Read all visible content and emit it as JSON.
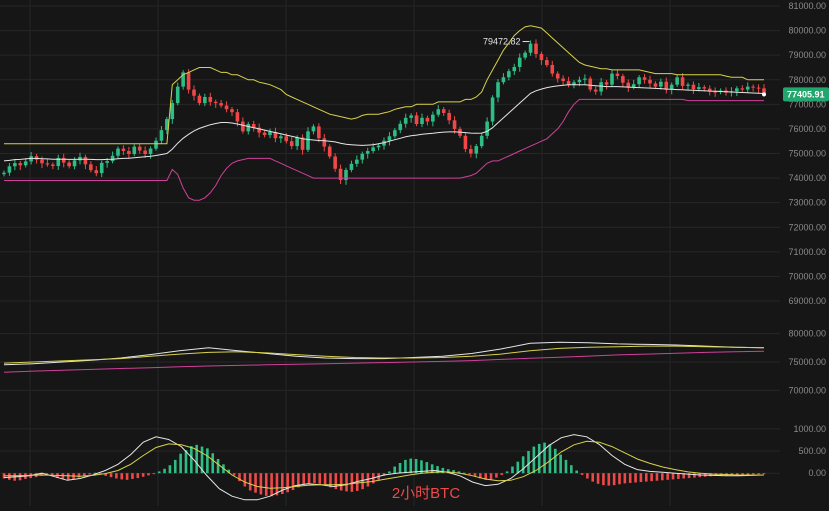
{
  "title": "",
  "caption": "2小时BTC",
  "colors": {
    "background": "#161616",
    "grid": "#262626",
    "up": "#2ebd85",
    "down": "#f04848",
    "boll_upper": "#d8d24a",
    "boll_mid": "#e6e6e6",
    "boll_lower": "#d0409a",
    "ma_a": "#e6e6e6",
    "ma_b": "#d8d24a",
    "ma_c": "#d0409a",
    "price_tag": "#22a66e"
  },
  "chart_data": [
    {
      "type": "candlestick",
      "panel": "price",
      "y_ticks": [
        "81000.00",
        "80000.00",
        "79000.00",
        "78000.00",
        "77000.00",
        "76000.00",
        "75000.00",
        "74000.00",
        "73000.00",
        "72000.00",
        "71000.00",
        "70000.00",
        "69000.00"
      ],
      "ylim": [
        68500,
        81000
      ],
      "current_price": "77405.91",
      "current_price_value": 77405.91,
      "high_annotation": "79472.82",
      "high_value": 79472.82,
      "close": [
        74220,
        74480,
        74610,
        74520,
        74680,
        74890,
        74750,
        74600,
        74550,
        74490,
        74820,
        74630,
        74480,
        74720,
        74860,
        74560,
        74320,
        74200,
        74620,
        74690,
        74910,
        75200,
        75100,
        74980,
        75280,
        75120,
        74980,
        75200,
        75520,
        75950,
        76400,
        77050,
        77720,
        78300,
        77600,
        77350,
        77050,
        77300,
        77100,
        77050,
        76950,
        76800,
        76680,
        76300,
        75900,
        76200,
        76050,
        75850,
        75750,
        75880,
        75620,
        75700,
        75500,
        75300,
        75650,
        75150,
        75900,
        76100,
        75620,
        75280,
        74880,
        74380,
        73920,
        74330,
        74580,
        74750,
        74990,
        75100,
        75250,
        75320,
        75520,
        75700,
        75950,
        76210,
        76450,
        76550,
        76200,
        76450,
        76300,
        76580,
        76800,
        76650,
        76350,
        76000,
        75720,
        75180,
        75000,
        75300,
        75720,
        76300,
        77280,
        77900,
        78100,
        78350,
        78520,
        78900,
        79100,
        79470,
        79050,
        78800,
        78600,
        78250,
        78050,
        77950,
        77780,
        77900,
        78000,
        78050,
        77600,
        77520,
        77900,
        77800,
        78250,
        78150,
        77880,
        77700,
        77820,
        78100,
        78000,
        77850,
        77720,
        77920,
        77600,
        77800,
        78100,
        77750,
        77800,
        77620,
        77700,
        77640,
        77520,
        77500,
        77560,
        77480,
        77530,
        77650,
        77600,
        77720,
        77680,
        77650,
        77406
      ],
      "series": [
        {
          "name": "",
          "indicator": "Bollinger upper",
          "values": [
            75400,
            75400,
            75400,
            75400,
            75400,
            75400,
            75400,
            75400,
            75400,
            75400,
            75400,
            75400,
            75400,
            75400,
            75400,
            75400,
            75400,
            75400,
            75400,
            75400,
            75400,
            75400,
            75400,
            75400,
            75400,
            75400,
            75400,
            75400,
            75400,
            75400,
            75400,
            77800,
            78000,
            78200,
            78300,
            78400,
            78500,
            78500,
            78500,
            78400,
            78300,
            78300,
            78200,
            78200,
            78100,
            78000,
            78000,
            77900,
            77850,
            77800,
            77700,
            77600,
            77400,
            77300,
            77200,
            77100,
            77000,
            76900,
            76800,
            76700,
            76600,
            76550,
            76500,
            76450,
            76400,
            76450,
            76550,
            76600,
            76600,
            76600,
            76650,
            76700,
            76800,
            76850,
            76900,
            76900,
            77000,
            77000,
            77000,
            77000,
            77100,
            77100,
            77100,
            77100,
            77100,
            77200,
            77200,
            77300,
            77500,
            78000,
            78400,
            78800,
            79200,
            79500,
            79800,
            80000,
            80150,
            80200,
            80150,
            80100,
            79900,
            79700,
            79500,
            79300,
            79100,
            78900,
            78700,
            78600,
            78550,
            78500,
            78450,
            78450,
            78400,
            78400,
            78400,
            78400,
            78400,
            78400,
            78350,
            78300,
            78250,
            78250,
            78250,
            78250,
            78200,
            78200,
            78200,
            78200,
            78200,
            78200,
            78200,
            78200,
            78200,
            78150,
            78100,
            78100,
            78100,
            78000,
            78000,
            78000,
            78000
          ]
        },
        {
          "name": "",
          "indicator": "Bollinger middle",
          "values": [
            74700,
            74720,
            74750,
            74760,
            74780,
            74800,
            74800,
            74790,
            74780,
            74770,
            74770,
            74770,
            74760,
            74760,
            74770,
            74770,
            74760,
            74750,
            74750,
            74760,
            74770,
            74790,
            74800,
            74810,
            74830,
            74850,
            74870,
            74890,
            74920,
            74960,
            75000,
            75180,
            75420,
            75620,
            75780,
            75920,
            76020,
            76100,
            76170,
            76220,
            76260,
            76260,
            76240,
            76200,
            76150,
            76100,
            76050,
            76000,
            75950,
            75900,
            75850,
            75800,
            75750,
            75700,
            75650,
            75600,
            75570,
            75550,
            75530,
            75520,
            75500,
            75470,
            75420,
            75380,
            75360,
            75340,
            75330,
            75340,
            75360,
            75400,
            75440,
            75500,
            75560,
            75620,
            75680,
            75720,
            75750,
            75780,
            75800,
            75820,
            75850,
            75870,
            75880,
            75880,
            75870,
            75850,
            75830,
            75820,
            75830,
            75900,
            76050,
            76250,
            76450,
            76650,
            76850,
            77050,
            77250,
            77450,
            77550,
            77620,
            77680,
            77720,
            77750,
            77780,
            77800,
            77800,
            77800,
            77800,
            77780,
            77760,
            77740,
            77720,
            77720,
            77720,
            77710,
            77700,
            77690,
            77680,
            77670,
            77660,
            77650,
            77640,
            77620,
            77610,
            77600,
            77590,
            77580,
            77570,
            77560,
            77550,
            77540,
            77530,
            77520,
            77510,
            77500,
            77490,
            77480,
            77470,
            77460,
            77450,
            77440
          ]
        },
        {
          "name": "",
          "indicator": "Bollinger lower",
          "values": [
            73900,
            73900,
            73900,
            73900,
            73900,
            73900,
            73900,
            73900,
            73900,
            73900,
            73900,
            73900,
            73900,
            73900,
            73900,
            73900,
            73900,
            73900,
            73900,
            73900,
            73900,
            73900,
            73900,
            73900,
            73900,
            73900,
            73900,
            73900,
            73900,
            73900,
            73900,
            74350,
            74150,
            73600,
            73200,
            73100,
            73100,
            73200,
            73400,
            73700,
            74100,
            74400,
            74600,
            74700,
            74750,
            74800,
            74800,
            74800,
            74800,
            74800,
            74700,
            74600,
            74500,
            74400,
            74300,
            74200,
            74100,
            74000,
            74000,
            74000,
            74000,
            74000,
            74000,
            74000,
            74000,
            74000,
            74000,
            74000,
            74000,
            74000,
            74000,
            74000,
            74000,
            74000,
            74000,
            74000,
            74000,
            74000,
            74000,
            74000,
            74000,
            74000,
            74000,
            74000,
            74000,
            74050,
            74100,
            74200,
            74400,
            74600,
            74700,
            74700,
            74800,
            74900,
            75000,
            75100,
            75200,
            75300,
            75400,
            75500,
            75600,
            75800,
            76000,
            76300,
            76700,
            77000,
            77200,
            77200,
            77200,
            77200,
            77200,
            77200,
            77200,
            77200,
            77200,
            77200,
            77200,
            77200,
            77200,
            77200,
            77200,
            77200,
            77200,
            77200,
            77200,
            77200,
            77150,
            77150,
            77150,
            77150,
            77150,
            77150,
            77150,
            77150,
            77150,
            77150,
            77150,
            77150,
            77150,
            77150,
            77150
          ]
        }
      ]
    },
    {
      "type": "line",
      "panel": "moving averages",
      "y_ticks": [
        "80000.00",
        "75000.00",
        "70000.00"
      ],
      "ylim": [
        69000,
        81000
      ],
      "series": [
        {
          "name": "",
          "values": [
            74500,
            74700,
            75000,
            75300,
            75700,
            76300,
            77000,
            77500,
            77000,
            76500,
            76000,
            75700,
            75600,
            75600,
            75800,
            76000,
            76500,
            77300,
            78300,
            78500,
            78400,
            78200,
            78100,
            78000,
            77800,
            77600,
            77500
          ]
        },
        {
          "name": "",
          "values": [
            74800,
            75000,
            75200,
            75400,
            75600,
            76000,
            76400,
            76700,
            76800,
            76600,
            76300,
            76000,
            75800,
            75700,
            75700,
            75800,
            76000,
            76400,
            77000,
            77400,
            77600,
            77700,
            77800,
            77800,
            77700,
            77600,
            77500
          ]
        },
        {
          "name": "",
          "values": [
            73200,
            73400,
            73550,
            73700,
            73850,
            74000,
            74150,
            74300,
            74400,
            74500,
            74600,
            74700,
            74800,
            74900,
            75000,
            75100,
            75250,
            75450,
            75650,
            75850,
            76050,
            76250,
            76400,
            76550,
            76700,
            76800,
            76900
          ]
        }
      ]
    },
    {
      "type": "bar+line",
      "panel": "MACD",
      "y_ticks": [
        "1000.00",
        "500.00",
        "0.00"
      ],
      "ylim": [
        -650,
        1200
      ],
      "histogram": [
        -120,
        -150,
        -170,
        -160,
        -130,
        -110,
        -90,
        -60,
        -20,
        -60,
        -110,
        -140,
        -150,
        -130,
        -100,
        -60,
        -30,
        10,
        -20,
        -60,
        -90,
        -120,
        -140,
        -150,
        -130,
        -110,
        -80,
        -50,
        -20,
        40,
        100,
        180,
        300,
        440,
        520,
        610,
        640,
        600,
        560,
        450,
        320,
        200,
        80,
        -50,
        -180,
        -300,
        -390,
        -440,
        -480,
        -510,
        -520,
        -500,
        -470,
        -430,
        -380,
        -320,
        -260,
        -230,
        -220,
        -240,
        -270,
        -320,
        -360,
        -390,
        -410,
        -420,
        -400,
        -360,
        -300,
        -230,
        -150,
        -60,
        40,
        150,
        230,
        300,
        330,
        320,
        290,
        250,
        200,
        160,
        120,
        90,
        70,
        40,
        10,
        -30,
        -70,
        -120,
        -150,
        -140,
        -100,
        -40,
        40,
        150,
        260,
        380,
        500,
        600,
        660,
        690,
        650,
        550,
        420,
        300,
        180,
        60,
        -40,
        -120,
        -190,
        -240,
        -270,
        -280,
        -270,
        -250,
        -230,
        -220,
        -210,
        -200,
        -190,
        -180,
        -170,
        -160,
        -150,
        -140,
        -130,
        -120,
        -110,
        -100,
        -90,
        -80,
        -70,
        -60,
        -55,
        -50,
        -45,
        -40,
        -35,
        -30,
        -25,
        -20,
        -15
      ],
      "series": [
        {
          "name": "",
          "values": [
            -100,
            -80,
            -60,
            0,
            -80,
            -160,
            -120,
            -40,
            60,
            200,
            420,
            700,
            820,
            760,
            600,
            300,
            -50,
            -350,
            -520,
            -600,
            -600,
            -520,
            -380,
            -280,
            -240,
            -260,
            -300,
            -260,
            -180,
            -120,
            -40,
            0,
            20,
            40,
            60,
            20,
            -60,
            -200,
            -280,
            -250,
            -120,
            100,
            360,
            620,
            800,
            870,
            820,
            650,
            400,
            200,
            80,
            40,
            20,
            0,
            -20,
            -40,
            -50,
            -60,
            -60,
            -50,
            -40
          ]
        },
        {
          "name": "",
          "values": [
            -60,
            -60,
            -50,
            -40,
            -50,
            -60,
            -70,
            -50,
            -10,
            60,
            200,
            400,
            580,
            660,
            640,
            560,
            400,
            180,
            -40,
            -200,
            -300,
            -340,
            -330,
            -300,
            -270,
            -260,
            -260,
            -250,
            -220,
            -190,
            -140,
            -90,
            -40,
            0,
            20,
            30,
            0,
            -60,
            -130,
            -170,
            -160,
            -80,
            60,
            260,
            480,
            640,
            720,
            700,
            600,
            460,
            320,
            220,
            140,
            80,
            30,
            0,
            -20,
            -30,
            -40,
            -40,
            -40
          ]
        }
      ]
    }
  ]
}
